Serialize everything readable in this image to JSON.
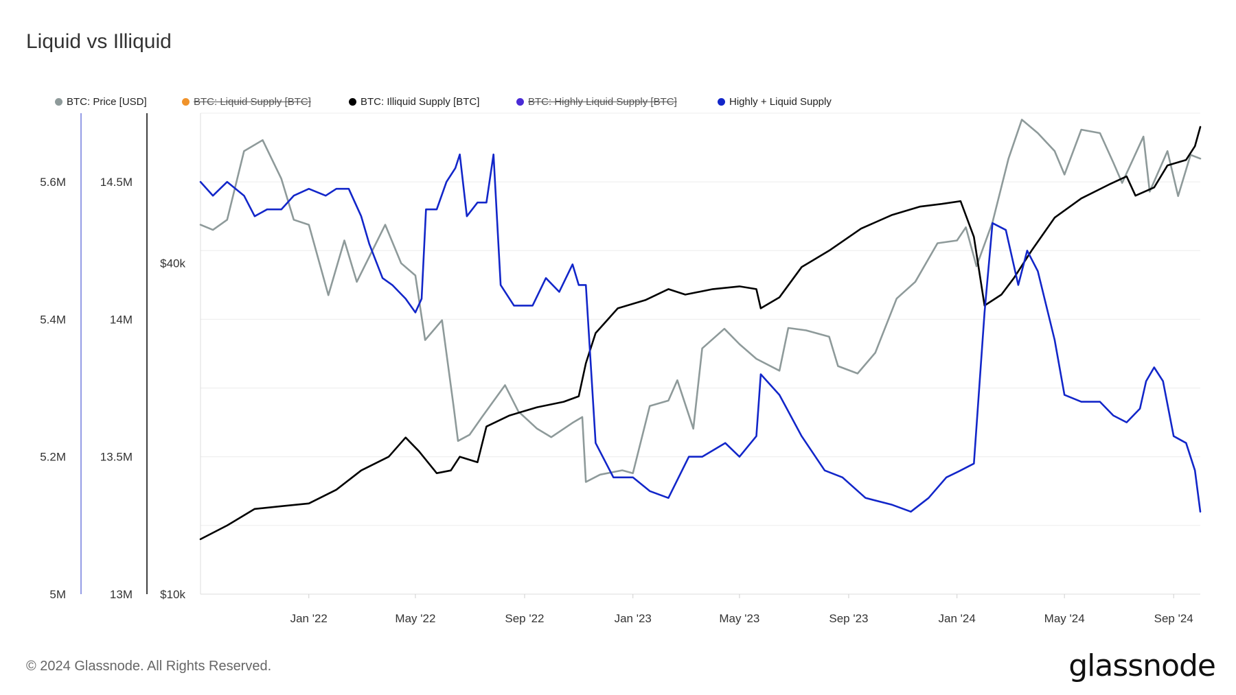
{
  "page_title": "Liquid vs Illiquid",
  "legend": [
    {
      "label": "BTC: Price [USD]",
      "color": "#8e9a9a",
      "enabled": true
    },
    {
      "label": "BTC: Liquid Supply [BTC]",
      "color": "#f0932b",
      "enabled": false
    },
    {
      "label": "BTC: Illiquid Supply [BTC]",
      "color": "#000000",
      "enabled": true
    },
    {
      "label": "BTC: Highly Liquid Supply [BTC]",
      "color": "#4a2bd6",
      "enabled": false
    },
    {
      "label": "Highly + Liquid Supply",
      "color": "#1226c9",
      "enabled": true
    }
  ],
  "footer": {
    "copyright": "© 2024 Glassnode. All Rights Reserved.",
    "brand": "glassnode"
  },
  "chart_data": {
    "type": "line",
    "title": "Liquid vs Illiquid",
    "x_ticks": [
      "Jan '22",
      "May '22",
      "Sep '22",
      "Jan '23",
      "May '23",
      "Sep '23",
      "Jan '24",
      "May '24",
      "Sep '24"
    ],
    "x_range": [
      "2021-09-01",
      "2024-10-01"
    ],
    "axes": {
      "highly_liquid": {
        "ticks": [
          "5M",
          "5.2M",
          "5.4M",
          "5.6M"
        ],
        "range": [
          5000000,
          5700000
        ],
        "scale": "linear",
        "color": "#1226c9"
      },
      "illiquid": {
        "ticks": [
          "13M",
          "13.5M",
          "14M",
          "14.5M"
        ],
        "range": [
          13000000,
          14750000
        ],
        "scale": "linear",
        "color": "#000000"
      },
      "price": {
        "ticks": [
          "$10k",
          "$40k"
        ],
        "range": [
          10000,
          75000
        ],
        "scale": "log",
        "color": "#8e9a9a"
      }
    },
    "grid": true,
    "legend_position": "top",
    "series": [
      {
        "name": "BTC: Price [USD]",
        "axis": "price",
        "color": "#8e9a9a",
        "points": [
          [
            "2021-09-01",
            47000
          ],
          [
            "2021-09-15",
            46000
          ],
          [
            "2021-10-01",
            48000
          ],
          [
            "2021-10-20",
            64000
          ],
          [
            "2021-11-10",
            67000
          ],
          [
            "2021-12-01",
            57000
          ],
          [
            "2021-12-15",
            48000
          ],
          [
            "2022-01-01",
            47000
          ],
          [
            "2022-01-23",
            35000
          ],
          [
            "2022-02-10",
            44000
          ],
          [
            "2022-02-24",
            37000
          ],
          [
            "2022-03-28",
            47000
          ],
          [
            "2022-04-15",
            40000
          ],
          [
            "2022-05-01",
            38000
          ],
          [
            "2022-05-12",
            29000
          ],
          [
            "2022-05-31",
            31500
          ],
          [
            "2022-06-13",
            22000
          ],
          [
            "2022-06-18",
            19000
          ],
          [
            "2022-07-01",
            19500
          ],
          [
            "2022-07-15",
            21000
          ],
          [
            "2022-08-10",
            24000
          ],
          [
            "2022-08-25",
            21500
          ],
          [
            "2022-09-15",
            20000
          ],
          [
            "2022-10-01",
            19300
          ],
          [
            "2022-10-25",
            20500
          ],
          [
            "2022-11-05",
            21000
          ],
          [
            "2022-11-09",
            16000
          ],
          [
            "2022-11-25",
            16500
          ],
          [
            "2022-12-20",
            16800
          ],
          [
            "2023-01-01",
            16600
          ],
          [
            "2023-01-20",
            22000
          ],
          [
            "2023-02-10",
            22500
          ],
          [
            "2023-02-20",
            24500
          ],
          [
            "2023-03-10",
            20000
          ],
          [
            "2023-03-20",
            28000
          ],
          [
            "2023-04-14",
            30400
          ],
          [
            "2023-05-01",
            28500
          ],
          [
            "2023-05-20",
            26800
          ],
          [
            "2023-06-15",
            25500
          ],
          [
            "2023-06-25",
            30500
          ],
          [
            "2023-07-15",
            30200
          ],
          [
            "2023-08-10",
            29400
          ],
          [
            "2023-08-20",
            26000
          ],
          [
            "2023-09-11",
            25200
          ],
          [
            "2023-10-01",
            27500
          ],
          [
            "2023-10-25",
            34500
          ],
          [
            "2023-11-15",
            37000
          ],
          [
            "2023-12-10",
            43500
          ],
          [
            "2024-01-01",
            44000
          ],
          [
            "2024-01-11",
            46500
          ],
          [
            "2024-01-23",
            39500
          ],
          [
            "2024-02-10",
            47500
          ],
          [
            "2024-02-28",
            62000
          ],
          [
            "2024-03-14",
            73000
          ],
          [
            "2024-04-01",
            69000
          ],
          [
            "2024-04-20",
            64000
          ],
          [
            "2024-05-01",
            58000
          ],
          [
            "2024-05-20",
            70000
          ],
          [
            "2024-06-10",
            69000
          ],
          [
            "2024-06-25",
            61000
          ],
          [
            "2024-07-05",
            56000
          ],
          [
            "2024-07-29",
            68000
          ],
          [
            "2024-08-05",
            54000
          ],
          [
            "2024-08-25",
            64000
          ],
          [
            "2024-09-06",
            53000
          ],
          [
            "2024-09-20",
            63000
          ],
          [
            "2024-10-01",
            62000
          ]
        ]
      },
      {
        "name": "BTC: Illiquid Supply [BTC]",
        "axis": "illiquid",
        "color": "#000000",
        "points": [
          [
            "2021-09-01",
            13200000
          ],
          [
            "2021-10-01",
            13250000
          ],
          [
            "2021-11-01",
            13310000
          ],
          [
            "2021-12-01",
            13320000
          ],
          [
            "2022-01-01",
            13330000
          ],
          [
            "2022-02-01",
            13380000
          ],
          [
            "2022-03-01",
            13450000
          ],
          [
            "2022-04-01",
            13500000
          ],
          [
            "2022-04-20",
            13570000
          ],
          [
            "2022-05-05",
            13520000
          ],
          [
            "2022-05-25",
            13440000
          ],
          [
            "2022-06-10",
            13450000
          ],
          [
            "2022-06-20",
            13500000
          ],
          [
            "2022-07-10",
            13480000
          ],
          [
            "2022-07-20",
            13610000
          ],
          [
            "2022-08-15",
            13650000
          ],
          [
            "2022-09-15",
            13680000
          ],
          [
            "2022-10-15",
            13700000
          ],
          [
            "2022-11-01",
            13720000
          ],
          [
            "2022-11-09",
            13840000
          ],
          [
            "2022-11-20",
            13950000
          ],
          [
            "2022-12-15",
            14040000
          ],
          [
            "2023-01-15",
            14070000
          ],
          [
            "2023-02-10",
            14110000
          ],
          [
            "2023-03-01",
            14090000
          ],
          [
            "2023-04-01",
            14110000
          ],
          [
            "2023-05-01",
            14120000
          ],
          [
            "2023-05-20",
            14110000
          ],
          [
            "2023-05-25",
            14040000
          ],
          [
            "2023-06-15",
            14080000
          ],
          [
            "2023-07-10",
            14190000
          ],
          [
            "2023-08-10",
            14250000
          ],
          [
            "2023-09-15",
            14330000
          ],
          [
            "2023-10-20",
            14380000
          ],
          [
            "2023-11-20",
            14410000
          ],
          [
            "2023-12-15",
            14420000
          ],
          [
            "2024-01-05",
            14430000
          ],
          [
            "2024-01-20",
            14300000
          ],
          [
            "2024-02-01",
            14050000
          ],
          [
            "2024-02-20",
            14090000
          ],
          [
            "2024-03-05",
            14150000
          ],
          [
            "2024-03-25",
            14250000
          ],
          [
            "2024-04-20",
            14370000
          ],
          [
            "2024-05-20",
            14440000
          ],
          [
            "2024-06-20",
            14490000
          ],
          [
            "2024-07-10",
            14520000
          ],
          [
            "2024-07-20",
            14450000
          ],
          [
            "2024-08-10",
            14480000
          ],
          [
            "2024-08-25",
            14560000
          ],
          [
            "2024-09-15",
            14580000
          ],
          [
            "2024-09-25",
            14630000
          ],
          [
            "2024-10-01",
            14700000
          ]
        ]
      },
      {
        "name": "Highly + Liquid Supply",
        "axis": "highly_liquid",
        "color": "#1226c9",
        "points": [
          [
            "2021-09-01",
            5600000
          ],
          [
            "2021-09-15",
            5580000
          ],
          [
            "2021-10-01",
            5600000
          ],
          [
            "2021-10-20",
            5580000
          ],
          [
            "2021-11-01",
            5550000
          ],
          [
            "2021-11-15",
            5560000
          ],
          [
            "2021-12-01",
            5560000
          ],
          [
            "2021-12-15",
            5580000
          ],
          [
            "2022-01-01",
            5590000
          ],
          [
            "2022-01-20",
            5580000
          ],
          [
            "2022-02-01",
            5590000
          ],
          [
            "2022-02-15",
            5590000
          ],
          [
            "2022-03-01",
            5550000
          ],
          [
            "2022-03-10",
            5510000
          ],
          [
            "2022-03-25",
            5460000
          ],
          [
            "2022-04-05",
            5450000
          ],
          [
            "2022-04-20",
            5430000
          ],
          [
            "2022-05-01",
            5410000
          ],
          [
            "2022-05-08",
            5430000
          ],
          [
            "2022-05-13",
            5560000
          ],
          [
            "2022-05-25",
            5560000
          ],
          [
            "2022-06-05",
            5600000
          ],
          [
            "2022-06-15",
            5620000
          ],
          [
            "2022-06-20",
            5640000
          ],
          [
            "2022-06-28",
            5550000
          ],
          [
            "2022-07-10",
            5570000
          ],
          [
            "2022-07-20",
            5570000
          ],
          [
            "2022-07-28",
            5640000
          ],
          [
            "2022-08-05",
            5450000
          ],
          [
            "2022-08-20",
            5420000
          ],
          [
            "2022-09-10",
            5420000
          ],
          [
            "2022-09-25",
            5460000
          ],
          [
            "2022-10-10",
            5440000
          ],
          [
            "2022-10-25",
            5480000
          ],
          [
            "2022-11-01",
            5450000
          ],
          [
            "2022-11-09",
            5450000
          ],
          [
            "2022-11-20",
            5220000
          ],
          [
            "2022-12-10",
            5170000
          ],
          [
            "2023-01-01",
            5170000
          ],
          [
            "2023-01-20",
            5150000
          ],
          [
            "2023-02-10",
            5140000
          ],
          [
            "2023-03-05",
            5200000
          ],
          [
            "2023-03-20",
            5200000
          ],
          [
            "2023-04-15",
            5220000
          ],
          [
            "2023-05-01",
            5200000
          ],
          [
            "2023-05-20",
            5230000
          ],
          [
            "2023-05-25",
            5320000
          ],
          [
            "2023-06-15",
            5290000
          ],
          [
            "2023-07-10",
            5230000
          ],
          [
            "2023-08-05",
            5180000
          ],
          [
            "2023-08-25",
            5170000
          ],
          [
            "2023-09-20",
            5140000
          ],
          [
            "2023-10-20",
            5130000
          ],
          [
            "2023-11-10",
            5120000
          ],
          [
            "2023-11-30",
            5140000
          ],
          [
            "2023-12-20",
            5170000
          ],
          [
            "2024-01-05",
            5180000
          ],
          [
            "2024-01-20",
            5190000
          ],
          [
            "2024-02-01",
            5410000
          ],
          [
            "2024-02-10",
            5540000
          ],
          [
            "2024-02-25",
            5530000
          ],
          [
            "2024-03-10",
            5450000
          ],
          [
            "2024-03-20",
            5500000
          ],
          [
            "2024-04-01",
            5470000
          ],
          [
            "2024-04-20",
            5370000
          ],
          [
            "2024-05-01",
            5290000
          ],
          [
            "2024-05-20",
            5280000
          ],
          [
            "2024-06-10",
            5280000
          ],
          [
            "2024-06-25",
            5260000
          ],
          [
            "2024-07-10",
            5250000
          ],
          [
            "2024-07-25",
            5270000
          ],
          [
            "2024-08-01",
            5310000
          ],
          [
            "2024-08-10",
            5330000
          ],
          [
            "2024-08-20",
            5310000
          ],
          [
            "2024-09-01",
            5230000
          ],
          [
            "2024-09-15",
            5220000
          ],
          [
            "2024-09-25",
            5180000
          ],
          [
            "2024-10-01",
            5120000
          ]
        ]
      }
    ]
  }
}
